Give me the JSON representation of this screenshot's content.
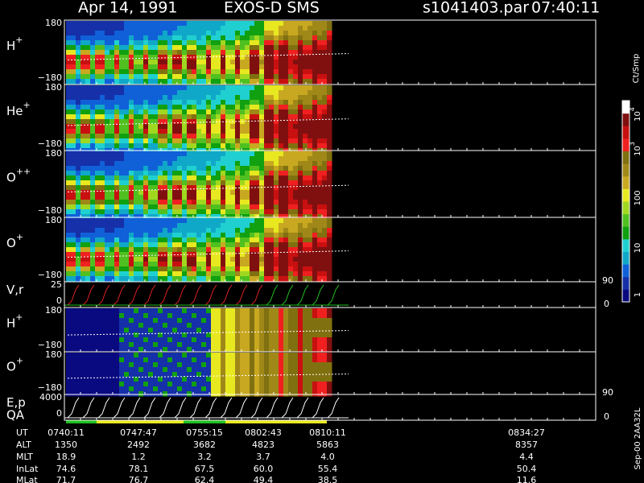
{
  "header": {
    "date": "Apr 14, 1991",
    "instrument": "EXOS-D SMS",
    "file": "s1041403.par",
    "time": "07:40:11"
  },
  "panels": [
    {
      "label": "H",
      "sup": "+",
      "top": "180",
      "bottom": "−180"
    },
    {
      "label": "He",
      "sup": "+",
      "top": "180",
      "bottom": "−180"
    },
    {
      "label": "O",
      "sup": "++",
      "top": "180",
      "bottom": "−180"
    },
    {
      "label": "O",
      "sup": "+",
      "top": "180",
      "bottom": "−180"
    },
    {
      "label": "V,r",
      "top": "25",
      "bottom": "0",
      "right_top": "90",
      "right_bottom": "0"
    },
    {
      "label": "H",
      "sup": "+",
      "top": "180",
      "bottom": "−180"
    },
    {
      "label": "O",
      "sup": "+",
      "top": "180",
      "bottom": "−180"
    },
    {
      "label": "E,p",
      "label2": "QA",
      "top": "4000",
      "bottom": "0",
      "right_top": "90",
      "right_bottom": "0"
    }
  ],
  "colorbar": {
    "title": "Ct/Smp",
    "labels": [
      {
        "text": "10",
        "sup": "4"
      },
      {
        "text": "10",
        "sup": "3"
      },
      {
        "text": "100"
      },
      {
        "text": "10"
      },
      {
        "text": "1"
      }
    ],
    "colors": [
      "#0a0a80",
      "#1530a8",
      "#1060d8",
      "#10a8c8",
      "#20d0d0",
      "#10a010",
      "#50c020",
      "#a0d820",
      "#e8e820",
      "#c8a820",
      "#a08818",
      "#807010",
      "#f02020",
      "#c81010",
      "#801010",
      "#ffffff"
    ]
  },
  "table": {
    "rows": [
      [
        "UT",
        "0740:11",
        "0747:47",
        "0755:15",
        "0802:43",
        "0810:11",
        "0834:27"
      ],
      [
        "ALT",
        "1350",
        "2492",
        "3682",
        "4823",
        "5863",
        "8357"
      ],
      [
        "MLT",
        "18.9",
        "1.2",
        "3.2",
        "3.7",
        "4.0",
        "4.4"
      ],
      [
        "InLat",
        "74.6",
        "78.1",
        "67.5",
        "60.0",
        "55.4",
        "50.4"
      ],
      [
        "MLat",
        "71.7",
        "76.7",
        "62.4",
        "49.4",
        "38.5",
        "11.6"
      ]
    ]
  },
  "footer": "Sep-00 2AA32L"
}
